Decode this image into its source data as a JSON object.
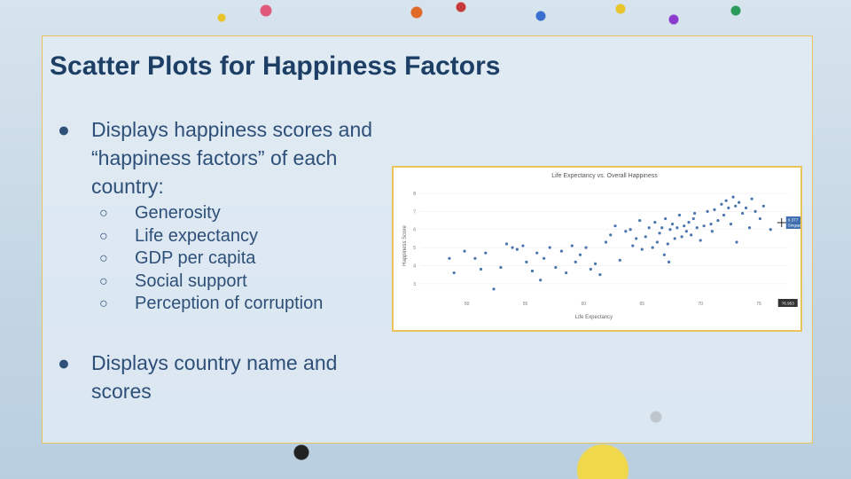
{
  "slide": {
    "title": "Scatter Plots for Happiness Factors",
    "bullets": [
      {
        "text": "Displays happiness scores and “happiness factors” of each country:"
      },
      {
        "text": "Displays country name and scores"
      }
    ],
    "sub_bullets": [
      "Generosity",
      "Life expectancy",
      "GDP per capita",
      "Social support",
      "Perception of corruption"
    ]
  },
  "colors": {
    "accent": "#1d3f66",
    "point": "#4a76b0",
    "frame": "#e8c45a"
  },
  "chart_data": {
    "type": "scatter",
    "title": "Life Expectancy vs. Overall Happiness",
    "xlabel": "Life Expectancy",
    "ylabel": "Happiness Score",
    "xlim": [
      46,
      77.5
    ],
    "ylim": [
      2.3,
      8.2
    ],
    "x_ticks": [
      50,
      55,
      60,
      65,
      70,
      75
    ],
    "y_ticks": [
      3,
      4,
      5,
      6,
      7,
      8
    ],
    "grid": true,
    "hover": {
      "label": "6.377\nSingapore",
      "x_value": "76.953"
    },
    "points": [
      [
        48.5,
        4.4
      ],
      [
        48.9,
        3.6
      ],
      [
        49.8,
        4.8
      ],
      [
        50.7,
        4.4
      ],
      [
        51.2,
        3.8
      ],
      [
        51.6,
        4.7
      ],
      [
        52.3,
        2.7
      ],
      [
        52.9,
        3.9
      ],
      [
        53.4,
        5.2
      ],
      [
        53.9,
        5.0
      ],
      [
        54.3,
        4.9
      ],
      [
        54.8,
        5.1
      ],
      [
        55.1,
        4.2
      ],
      [
        55.6,
        3.7
      ],
      [
        56.0,
        4.7
      ],
      [
        56.3,
        3.2
      ],
      [
        56.6,
        4.4
      ],
      [
        57.1,
        5.0
      ],
      [
        57.6,
        3.9
      ],
      [
        58.1,
        4.8
      ],
      [
        58.5,
        3.6
      ],
      [
        59.0,
        5.1
      ],
      [
        59.3,
        4.2
      ],
      [
        59.7,
        4.6
      ],
      [
        60.2,
        5.0
      ],
      [
        60.6,
        3.8
      ],
      [
        61.0,
        4.1
      ],
      [
        61.4,
        3.5
      ],
      [
        61.9,
        5.3
      ],
      [
        62.3,
        5.7
      ],
      [
        62.7,
        6.2
      ],
      [
        63.1,
        4.3
      ],
      [
        63.6,
        5.9
      ],
      [
        64.0,
        6.0
      ],
      [
        64.2,
        5.1
      ],
      [
        64.5,
        5.5
      ],
      [
        64.8,
        6.5
      ],
      [
        65.0,
        4.9
      ],
      [
        65.3,
        5.6
      ],
      [
        65.6,
        6.1
      ],
      [
        65.9,
        5.0
      ],
      [
        66.1,
        6.4
      ],
      [
        66.3,
        5.3
      ],
      [
        66.5,
        5.8
      ],
      [
        66.7,
        6.1
      ],
      [
        66.9,
        4.6
      ],
      [
        67.0,
        6.6
      ],
      [
        67.2,
        5.2
      ],
      [
        67.4,
        6.0
      ],
      [
        67.6,
        6.3
      ],
      [
        67.8,
        5.5
      ],
      [
        68.0,
        6.1
      ],
      [
        68.2,
        6.8
      ],
      [
        68.4,
        5.6
      ],
      [
        68.6,
        6.2
      ],
      [
        68.8,
        5.9
      ],
      [
        69.0,
        6.4
      ],
      [
        69.2,
        5.7
      ],
      [
        69.4,
        6.6
      ],
      [
        69.7,
        6.1
      ],
      [
        70.0,
        5.4
      ],
      [
        70.3,
        6.2
      ],
      [
        70.6,
        7.0
      ],
      [
        70.9,
        6.3
      ],
      [
        71.2,
        7.1
      ],
      [
        71.5,
        6.5
      ],
      [
        71.8,
        7.4
      ],
      [
        72.0,
        6.8
      ],
      [
        72.2,
        7.6
      ],
      [
        72.4,
        7.2
      ],
      [
        72.6,
        6.3
      ],
      [
        72.8,
        7.8
      ],
      [
        73.0,
        7.3
      ],
      [
        73.3,
        7.5
      ],
      [
        73.6,
        6.9
      ],
      [
        73.9,
        7.2
      ],
      [
        74.2,
        6.1
      ],
      [
        74.4,
        7.7
      ],
      [
        74.7,
        7.0
      ],
      [
        75.1,
        6.6
      ],
      [
        75.4,
        7.3
      ],
      [
        76.0,
        6.0
      ],
      [
        73.1,
        5.3
      ],
      [
        71.0,
        5.9
      ],
      [
        69.5,
        6.9
      ],
      [
        67.3,
        4.2
      ]
    ]
  }
}
